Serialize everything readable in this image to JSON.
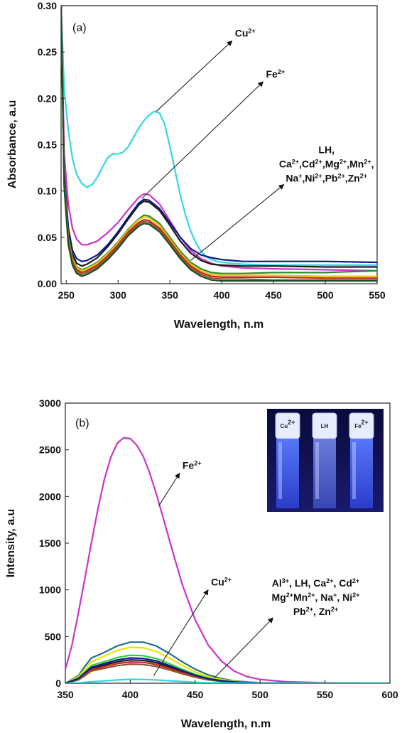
{
  "chart_data": [
    {
      "type": "line",
      "panel_label": "(a)",
      "xlabel": "Wavelength, n.m",
      "ylabel": "Absorbance, a.u",
      "xlim": [
        245,
        550
      ],
      "ylim": [
        0,
        0.3
      ],
      "xticks": [
        250,
        300,
        350,
        400,
        450,
        500,
        550
      ],
      "yticks": [
        "0.00",
        "0.05",
        "0.10",
        "0.15",
        "0.20",
        "0.25",
        "0.30"
      ],
      "annotations": [
        {
          "lines": [
            "Cu|2+"
          ],
          "from": [
            337,
            0.186
          ],
          "to": [
            410,
            0.262
          ]
        },
        {
          "lines": [
            "Fe|2+"
          ],
          "from": [
            323,
            0.092
          ],
          "to": [
            440,
            0.218
          ]
        },
        {
          "lines": [
            "LH,",
            "Ca|2+|,Cd|2+|,Mg|2+|,Mn|2+|,",
            "Na|+|,Ni|2+|,Pb|2+|,Zn|2+"
          ],
          "from": [
            370,
            0.025
          ],
          "to": [
            460,
            0.107
          ]
        }
      ],
      "series": [
        {
          "color": "#33d6e0",
          "x": [
            245,
            248,
            252,
            256,
            260,
            265,
            270,
            275,
            280,
            285,
            290,
            295,
            300,
            305,
            310,
            315,
            320,
            325,
            330,
            335,
            340,
            345,
            350,
            355,
            360,
            365,
            370,
            375,
            380,
            385,
            390,
            395,
            400,
            410,
            420,
            450,
            500,
            550
          ],
          "y": [
            0.3,
            0.21,
            0.165,
            0.135,
            0.118,
            0.108,
            0.104,
            0.107,
            0.115,
            0.126,
            0.136,
            0.14,
            0.14,
            0.142,
            0.148,
            0.158,
            0.168,
            0.176,
            0.182,
            0.186,
            0.184,
            0.172,
            0.148,
            0.122,
            0.096,
            0.074,
            0.057,
            0.044,
            0.035,
            0.029,
            0.026,
            0.024,
            0.023,
            0.022,
            0.021,
            0.02,
            0.02,
            0.02
          ]
        },
        {
          "color": "#cc33cc",
          "x": [
            245,
            248,
            252,
            256,
            260,
            265,
            270,
            280,
            290,
            300,
            310,
            320,
            325,
            330,
            340,
            350,
            360,
            370,
            380,
            390,
            400,
            420,
            450,
            500,
            550
          ],
          "y": [
            0.3,
            0.14,
            0.085,
            0.06,
            0.048,
            0.042,
            0.042,
            0.046,
            0.055,
            0.066,
            0.08,
            0.093,
            0.097,
            0.096,
            0.086,
            0.068,
            0.05,
            0.036,
            0.027,
            0.022,
            0.019,
            0.017,
            0.016,
            0.015,
            0.014
          ]
        },
        {
          "color": "#0b1b8f",
          "x": [
            245,
            248,
            252,
            256,
            260,
            265,
            270,
            280,
            290,
            300,
            310,
            320,
            325,
            330,
            340,
            350,
            360,
            370,
            380,
            390,
            400,
            410,
            420,
            450,
            500,
            550
          ],
          "y": [
            0.3,
            0.12,
            0.06,
            0.036,
            0.027,
            0.024,
            0.025,
            0.031,
            0.042,
            0.056,
            0.072,
            0.087,
            0.091,
            0.09,
            0.081,
            0.066,
            0.05,
            0.038,
            0.031,
            0.028,
            0.026,
            0.025,
            0.024,
            0.024,
            0.024,
            0.023
          ]
        },
        {
          "color": "#1a1a1a",
          "x": [
            245,
            248,
            252,
            256,
            260,
            265,
            270,
            280,
            290,
            300,
            310,
            320,
            325,
            330,
            340,
            350,
            360,
            370,
            380,
            390,
            400,
            420,
            450,
            500,
            550
          ],
          "y": [
            0.3,
            0.115,
            0.055,
            0.032,
            0.022,
            0.019,
            0.021,
            0.028,
            0.04,
            0.054,
            0.07,
            0.085,
            0.089,
            0.088,
            0.079,
            0.063,
            0.046,
            0.033,
            0.025,
            0.021,
            0.02,
            0.019,
            0.019,
            0.018,
            0.018
          ]
        },
        {
          "color": "#2e8b2e",
          "x": [
            245,
            248,
            252,
            256,
            260,
            265,
            270,
            280,
            290,
            300,
            310,
            320,
            325,
            330,
            340,
            350,
            360,
            370,
            380,
            390,
            400,
            420,
            450,
            500,
            550
          ],
          "y": [
            0.3,
            0.11,
            0.05,
            0.028,
            0.018,
            0.015,
            0.017,
            0.023,
            0.033,
            0.045,
            0.059,
            0.07,
            0.074,
            0.073,
            0.065,
            0.05,
            0.035,
            0.023,
            0.016,
            0.012,
            0.011,
            0.011,
            0.012,
            0.012,
            0.014
          ]
        },
        {
          "color": "#e6c800",
          "x": [
            245,
            248,
            252,
            256,
            260,
            265,
            270,
            280,
            290,
            300,
            310,
            320,
            325,
            330,
            340,
            350,
            360,
            370,
            380,
            390,
            400,
            420,
            450,
            500,
            550
          ],
          "y": [
            0.3,
            0.11,
            0.048,
            0.026,
            0.017,
            0.014,
            0.016,
            0.022,
            0.032,
            0.044,
            0.058,
            0.069,
            0.072,
            0.071,
            0.063,
            0.048,
            0.033,
            0.021,
            0.014,
            0.01,
            0.009,
            0.009,
            0.009,
            0.008,
            0.008
          ]
        },
        {
          "color": "#cc2222",
          "x": [
            245,
            248,
            252,
            256,
            260,
            265,
            270,
            280,
            290,
            300,
            310,
            320,
            325,
            330,
            340,
            350,
            360,
            370,
            380,
            390,
            400,
            420,
            450,
            500,
            550
          ],
          "y": [
            0.3,
            0.108,
            0.046,
            0.024,
            0.015,
            0.012,
            0.014,
            0.02,
            0.03,
            0.042,
            0.056,
            0.066,
            0.069,
            0.068,
            0.06,
            0.046,
            0.031,
            0.019,
            0.012,
            0.008,
            0.007,
            0.007,
            0.007,
            0.006,
            0.006
          ]
        },
        {
          "color": "#8a5a2b",
          "x": [
            245,
            248,
            252,
            256,
            260,
            265,
            270,
            280,
            290,
            300,
            310,
            320,
            325,
            330,
            340,
            350,
            360,
            370,
            380,
            390,
            400,
            420,
            450,
            500,
            550
          ],
          "y": [
            0.3,
            0.106,
            0.044,
            0.022,
            0.013,
            0.01,
            0.012,
            0.018,
            0.028,
            0.04,
            0.054,
            0.064,
            0.067,
            0.066,
            0.058,
            0.044,
            0.029,
            0.017,
            0.01,
            0.006,
            0.005,
            0.005,
            0.004,
            0.004,
            0.004
          ]
        },
        {
          "color": "#1b4f2a",
          "x": [
            245,
            248,
            252,
            256,
            260,
            265,
            270,
            280,
            290,
            300,
            310,
            320,
            325,
            330,
            340,
            350,
            360,
            370,
            380,
            390,
            400,
            420,
            450,
            500,
            550
          ],
          "y": [
            0.3,
            0.104,
            0.042,
            0.02,
            0.011,
            0.008,
            0.01,
            0.016,
            0.026,
            0.038,
            0.052,
            0.062,
            0.065,
            0.064,
            0.056,
            0.042,
            0.027,
            0.015,
            0.008,
            0.004,
            0.003,
            0.003,
            0.003,
            0.003,
            0.003
          ]
        }
      ]
    },
    {
      "type": "line",
      "panel_label": "(b)",
      "xlabel": "Wavelength, n.m",
      "ylabel": "Intensity, a.u",
      "xlim": [
        350,
        600
      ],
      "ylim": [
        0,
        3000
      ],
      "xticks": [
        350,
        400,
        450,
        500,
        550,
        600
      ],
      "yticks": [
        "0",
        "500",
        "1000",
        "1500",
        "2000",
        "2500",
        "3000"
      ],
      "annotations": [
        {
          "lines": [
            "Fe|2+"
          ],
          "from": [
            422,
            1900
          ],
          "to": [
            438,
            2250
          ]
        },
        {
          "lines": [
            "Cu|2+"
          ],
          "from": [
            418,
            80
          ],
          "to": [
            460,
            1000
          ]
        },
        {
          "lines": [
            "Al|3+|, LH, Ca|2+|, Cd|2+",
            "Mg|2+|Mn|2+|, Na|+|, Ni|2+",
            "Pb|2+|, Zn|2+"
          ],
          "from": [
            465,
            60
          ],
          "to": [
            510,
            700
          ]
        }
      ],
      "inset": {
        "vials": [
          "Cu|2+",
          "LH",
          "Fe|2+"
        ]
      },
      "series": [
        {
          "color": "#cc33cc",
          "x": [
            350,
            355,
            360,
            365,
            370,
            375,
            380,
            385,
            390,
            395,
            400,
            405,
            410,
            415,
            420,
            425,
            430,
            440,
            450,
            460,
            470,
            480,
            490,
            500,
            520,
            550,
            600
          ],
          "y": [
            150,
            400,
            750,
            1120,
            1500,
            1860,
            2180,
            2420,
            2570,
            2630,
            2620,
            2550,
            2430,
            2250,
            2030,
            1790,
            1540,
            1060,
            680,
            410,
            240,
            130,
            70,
            40,
            15,
            5,
            0
          ]
        },
        {
          "color": "#1f6f8b",
          "x": [
            350,
            360,
            365,
            370,
            375,
            380,
            390,
            400,
            410,
            420,
            430,
            440,
            450,
            460,
            470,
            480,
            500,
            550,
            600
          ],
          "y": [
            0,
            80,
            180,
            270,
            300,
            330,
            400,
            440,
            440,
            400,
            320,
            230,
            150,
            90,
            50,
            25,
            5,
            0,
            0
          ]
        },
        {
          "color": "#e6e600",
          "x": [
            350,
            360,
            365,
            370,
            375,
            380,
            390,
            400,
            410,
            420,
            430,
            440,
            450,
            460,
            470,
            480,
            500,
            550,
            600
          ],
          "y": [
            0,
            70,
            150,
            230,
            260,
            290,
            350,
            385,
            380,
            340,
            270,
            190,
            120,
            70,
            40,
            20,
            5,
            0,
            0
          ]
        },
        {
          "color": "#33cc33",
          "x": [
            350,
            360,
            365,
            370,
            375,
            380,
            390,
            400,
            410,
            420,
            430,
            440,
            450,
            460,
            470,
            480,
            500,
            550,
            600
          ],
          "y": [
            0,
            55,
            120,
            190,
            210,
            230,
            275,
            300,
            295,
            265,
            210,
            150,
            95,
            55,
            30,
            15,
            3,
            0,
            0
          ]
        },
        {
          "color": "#1a1a1a",
          "x": [
            350,
            360,
            365,
            370,
            375,
            380,
            390,
            400,
            410,
            420,
            430,
            440,
            450,
            460,
            470,
            480,
            500,
            550,
            600
          ],
          "y": [
            0,
            45,
            100,
            160,
            175,
            195,
            230,
            250,
            245,
            220,
            175,
            125,
            80,
            45,
            25,
            12,
            2,
            0,
            0
          ]
        },
        {
          "color": "#cc2222",
          "x": [
            350,
            360,
            365,
            370,
            375,
            380,
            390,
            400,
            410,
            420,
            430,
            440,
            450,
            460,
            470,
            480,
            500,
            550,
            600
          ],
          "y": [
            0,
            40,
            90,
            145,
            160,
            178,
            210,
            228,
            224,
            200,
            160,
            113,
            72,
            40,
            22,
            10,
            2,
            0,
            0
          ]
        },
        {
          "color": "#8a5a2b",
          "x": [
            350,
            360,
            365,
            370,
            375,
            380,
            390,
            400,
            410,
            420,
            430,
            440,
            450,
            460,
            470,
            480,
            500,
            550,
            600
          ],
          "y": [
            0,
            35,
            80,
            130,
            145,
            160,
            188,
            205,
            200,
            180,
            143,
            101,
            64,
            36,
            19,
            9,
            2,
            0,
            0
          ]
        },
        {
          "color": "#0b1b8f",
          "x": [
            350,
            360,
            365,
            370,
            375,
            380,
            390,
            400,
            410,
            420,
            430,
            440,
            450,
            460,
            470,
            480,
            500,
            550,
            600
          ],
          "y": [
            0,
            50,
            110,
            170,
            190,
            210,
            250,
            270,
            265,
            240,
            190,
            135,
            85,
            48,
            26,
            12,
            3,
            0,
            0
          ]
        },
        {
          "color": "#33d6e0",
          "x": [
            350,
            360,
            370,
            380,
            390,
            400,
            410,
            420,
            430,
            440,
            450,
            460,
            480,
            500,
            550,
            600
          ],
          "y": [
            0,
            5,
            15,
            25,
            35,
            42,
            40,
            35,
            27,
            18,
            10,
            5,
            1,
            0,
            0,
            0
          ]
        }
      ]
    }
  ]
}
